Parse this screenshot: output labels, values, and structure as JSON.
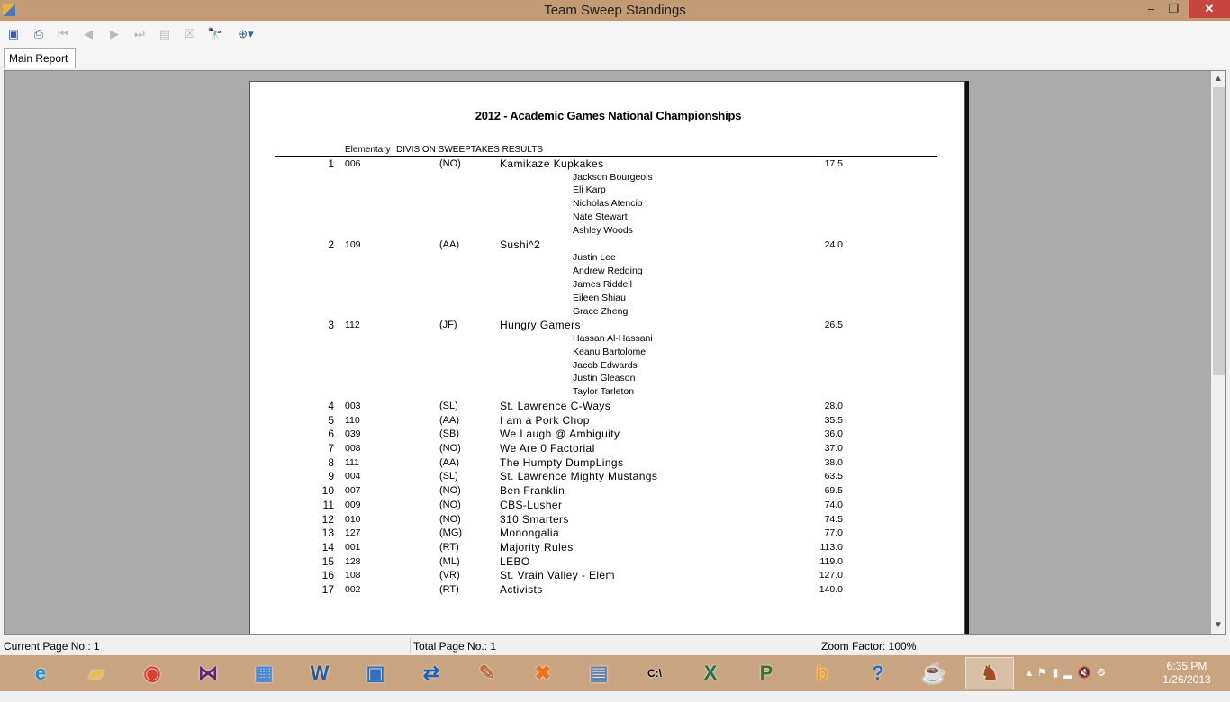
{
  "window": {
    "title": "Team Sweep Standings",
    "minimize": "–",
    "maximize": "❐",
    "close": "✕"
  },
  "toolbar": {
    "icons": [
      "export-icon",
      "print-icon",
      "first-page-icon",
      "previous-page-icon",
      "next-page-icon",
      "last-page-icon",
      "refresh-icon",
      "stop-icon",
      "find-icon",
      "zoom-icon"
    ]
  },
  "tabs": [
    {
      "label": "Main Report"
    }
  ],
  "report": {
    "title": "2012 - Academic Games National Championships",
    "division": "Elementary",
    "subtitle": "DIVISION SWEEPTAKES RESULTS",
    "teams": [
      {
        "rank": "1",
        "code": "006",
        "div": "(NO)",
        "name": "Kamikaze Kupkakes",
        "score": "17.5",
        "members": [
          "Jackson Bourgeois",
          "Eli Karp",
          "Nicholas Atencio",
          "Nate Stewart",
          "Ashley Woods"
        ]
      },
      {
        "rank": "2",
        "code": "109",
        "div": "(AA)",
        "name": "Sushi^2",
        "score": "24.0",
        "members": [
          "Justin Lee",
          "Andrew Redding",
          "James Riddell",
          "Eileen Shiau",
          "Grace Zheng"
        ]
      },
      {
        "rank": "3",
        "code": "112",
        "div": "(JF)",
        "name": "Hungry Gamers",
        "score": "26.5",
        "members": [
          "Hassan Al-Hassani",
          "Keanu Bartolome",
          "Jacob Edwards",
          "Justin Gleason",
          "Taylor Tarleton"
        ]
      },
      {
        "rank": "4",
        "code": "003",
        "div": "(SL)",
        "name": "St. Lawrence C-Ways",
        "score": "28.0",
        "members": []
      },
      {
        "rank": "5",
        "code": "110",
        "div": "(AA)",
        "name": "I am a Pork Chop",
        "score": "35.5",
        "members": []
      },
      {
        "rank": "6",
        "code": "039",
        "div": "(SB)",
        "name": "We Laugh @ Ambiguity",
        "score": "36.0",
        "members": []
      },
      {
        "rank": "7",
        "code": "008",
        "div": "(NO)",
        "name": "We Are 0 Factorial",
        "score": "37.0",
        "members": []
      },
      {
        "rank": "8",
        "code": "111",
        "div": "(AA)",
        "name": "The Humpty DumpLings",
        "score": "38.0",
        "members": []
      },
      {
        "rank": "9",
        "code": "004",
        "div": "(SL)",
        "name": "St. Lawrence Mighty Mustangs",
        "score": "63.5",
        "members": []
      },
      {
        "rank": "10",
        "code": "007",
        "div": "(NO)",
        "name": "Ben Franklin",
        "score": "69.5",
        "members": []
      },
      {
        "rank": "11",
        "code": "009",
        "div": "(NO)",
        "name": "CBS-Lusher",
        "score": "74.0",
        "members": []
      },
      {
        "rank": "12",
        "code": "010",
        "div": "(NO)",
        "name": "310 Smarters",
        "score": "74.5",
        "members": []
      },
      {
        "rank": "13",
        "code": "127",
        "div": "(MG)",
        "name": "Monongalia",
        "score": "77.0",
        "members": []
      },
      {
        "rank": "14",
        "code": "001",
        "div": "(RT)",
        "name": "Majority Rules",
        "score": "113.0",
        "members": []
      },
      {
        "rank": "15",
        "code": "128",
        "div": "(ML)",
        "name": "LEBO",
        "score": "119.0",
        "members": []
      },
      {
        "rank": "16",
        "code": "108",
        "div": "(VR)",
        "name": "St. Vrain Valley - Elem",
        "score": "127.0",
        "members": []
      },
      {
        "rank": "17",
        "code": "002",
        "div": "(RT)",
        "name": "Activists",
        "score": "140.0",
        "members": []
      }
    ]
  },
  "status": {
    "current_page": "Current Page No.: 1",
    "total_page": "Total Page No.: 1",
    "zoom": "Zoom Factor: 100%"
  },
  "taskbar": {
    "apps": [
      "internet-explorer-icon",
      "file-explorer-icon",
      "chrome-icon",
      "visual-studio-icon",
      "control-panel-icon",
      "word-icon",
      "remote-desktop-icon",
      "network-icon",
      "paint-icon",
      "xampp-icon",
      "notepad-icon",
      "cmd-icon",
      "excel-icon",
      "project-icon",
      "bing-icon",
      "help-icon",
      "java-icon",
      "app-icon"
    ],
    "time": "6:35 PM",
    "date": "1/26/2013"
  }
}
